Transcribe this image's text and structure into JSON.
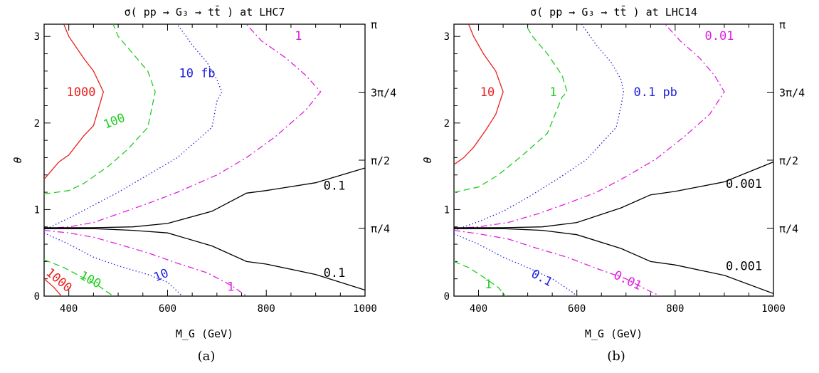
{
  "captions": [
    "(a)",
    "(b)"
  ],
  "colors": {
    "red": "#e8201e",
    "green": "#22cc22",
    "blue": "#2222dd",
    "magenta": "#e020e0",
    "black": "#000000"
  },
  "chart_data": [
    {
      "type": "line",
      "title": "σ( pp → G₃ → tt̄ ) at LHC7",
      "xlabel": "M_G (GeV)",
      "ylabel": "θ",
      "xlim": [
        350,
        1000
      ],
      "ylim": [
        0,
        3.14159
      ],
      "xticks": [
        400,
        600,
        800,
        1000
      ],
      "yticks": [
        0,
        1,
        2,
        3
      ],
      "right_ticks": [
        "π",
        "3π/4",
        "π/2",
        "π/4"
      ],
      "right_tick_values": [
        3.14159,
        2.35619,
        1.5708,
        0.7854
      ],
      "series": [
        {
          "color": "red",
          "dash": "solid",
          "points": [
            [
              350,
              1.35
            ],
            [
              380,
              1.55
            ],
            [
              400,
              1.63
            ],
            [
              430,
              1.85
            ],
            [
              450,
              1.97
            ],
            [
              470,
              2.36
            ],
            [
              450,
              2.6
            ],
            [
              430,
              2.75
            ],
            [
              400,
              3.0
            ],
            [
              390,
              3.14
            ]
          ]
        },
        {
          "color": "red",
          "dash": "solid",
          "points": [
            [
              350,
              0.2
            ],
            [
              370,
              0.1
            ],
            [
              385,
              0
            ]
          ]
        },
        {
          "color": "green",
          "dash": "dashed",
          "points": [
            [
              350,
              1.18
            ],
            [
              400,
              1.22
            ],
            [
              430,
              1.3
            ],
            [
              480,
              1.5
            ],
            [
              520,
              1.7
            ],
            [
              560,
              1.95
            ],
            [
              575,
              2.36
            ],
            [
              560,
              2.6
            ],
            [
              530,
              2.8
            ],
            [
              500,
              3.0
            ],
            [
              490,
              3.14
            ]
          ]
        },
        {
          "color": "green",
          "dash": "dashed",
          "points": [
            [
              350,
              0.42
            ],
            [
              390,
              0.33
            ],
            [
              420,
              0.24
            ],
            [
              460,
              0.12
            ],
            [
              490,
              0
            ]
          ]
        },
        {
          "color": "blue",
          "dash": "dotted",
          "points": [
            [
              350,
              0.76
            ],
            [
              370,
              0.82
            ],
            [
              400,
              0.9
            ],
            [
              450,
              1.05
            ],
            [
              500,
              1.2
            ],
            [
              560,
              1.4
            ],
            [
              620,
              1.6
            ],
            [
              690,
              1.95
            ],
            [
              700,
              2.25
            ],
            [
              710,
              2.36
            ],
            [
              700,
              2.5
            ],
            [
              680,
              2.7
            ],
            [
              650,
              2.9
            ],
            [
              620,
              3.14
            ]
          ]
        },
        {
          "color": "blue",
          "dash": "dotted",
          "points": [
            [
              350,
              0.73
            ],
            [
              400,
              0.6
            ],
            [
              450,
              0.45
            ],
            [
              500,
              0.35
            ],
            [
              560,
              0.25
            ],
            [
              600,
              0.16
            ],
            [
              630,
              0
            ]
          ]
        },
        {
          "color": "magenta",
          "dash": "dashdot",
          "points": [
            [
              350,
              0.78
            ],
            [
              400,
              0.8
            ],
            [
              450,
              0.85
            ],
            [
              500,
              0.95
            ],
            [
              560,
              1.07
            ],
            [
              620,
              1.2
            ],
            [
              700,
              1.4
            ],
            [
              760,
              1.6
            ],
            [
              820,
              1.85
            ],
            [
              880,
              2.15
            ],
            [
              910,
              2.36
            ],
            [
              880,
              2.55
            ],
            [
              840,
              2.75
            ],
            [
              790,
              2.95
            ],
            [
              760,
              3.14
            ]
          ]
        },
        {
          "color": "magenta",
          "dash": "dashdot",
          "points": [
            [
              350,
              0.76
            ],
            [
              400,
              0.73
            ],
            [
              450,
              0.68
            ],
            [
              500,
              0.6
            ],
            [
              560,
              0.5
            ],
            [
              620,
              0.38
            ],
            [
              680,
              0.27
            ],
            [
              730,
              0.12
            ],
            [
              760,
              0
            ]
          ]
        },
        {
          "color": "black",
          "dash": "solid",
          "points": [
            [
              350,
              0.79
            ],
            [
              450,
              0.79
            ],
            [
              530,
              0.8
            ],
            [
              600,
              0.84
            ],
            [
              690,
              0.98
            ],
            [
              760,
              1.19
            ],
            [
              800,
              1.22
            ],
            [
              900,
              1.31
            ],
            [
              1000,
              1.48
            ]
          ]
        },
        {
          "color": "black",
          "dash": "solid",
          "points": [
            [
              350,
              0.78
            ],
            [
              450,
              0.78
            ],
            [
              530,
              0.76
            ],
            [
              600,
              0.73
            ],
            [
              690,
              0.58
            ],
            [
              760,
              0.4
            ],
            [
              800,
              0.37
            ],
            [
              900,
              0.25
            ],
            [
              1000,
              0.07
            ]
          ]
        }
      ],
      "labels": [
        {
          "text": "1000",
          "color": "red",
          "x": 425,
          "y": 2.31,
          "rot": 0
        },
        {
          "text": "1000",
          "color": "red",
          "x": 375,
          "y": 0.15,
          "rot": 40
        },
        {
          "text": "100",
          "color": "green",
          "x": 495,
          "y": 1.98,
          "rot": -22
        },
        {
          "text": "100",
          "color": "green",
          "x": 440,
          "y": 0.15,
          "rot": 28
        },
        {
          "text": "10 fb",
          "color": "blue",
          "x": 660,
          "y": 2.53,
          "rot": 0
        },
        {
          "text": "10",
          "color": "blue",
          "x": 590,
          "y": 0.2,
          "rot": -22
        },
        {
          "text": "1",
          "color": "magenta",
          "x": 865,
          "y": 2.96,
          "rot": 0
        },
        {
          "text": "1",
          "color": "magenta",
          "x": 728,
          "y": 0.06,
          "rot": 0
        },
        {
          "text": "0.1",
          "color": "black",
          "x": 938,
          "y": 1.23,
          "rot": 0
        },
        {
          "text": "0.1",
          "color": "black",
          "x": 938,
          "y": 0.22,
          "rot": 0
        }
      ]
    },
    {
      "type": "line",
      "title": "σ( pp → G₃ → tt̄ ) at LHC14",
      "xlabel": "M_G (GeV)",
      "ylabel": "θ",
      "xlim": [
        350,
        1000
      ],
      "ylim": [
        0,
        3.14159
      ],
      "xticks": [
        400,
        600,
        800,
        1000
      ],
      "yticks": [
        0,
        1,
        2,
        3
      ],
      "right_ticks": [
        "π",
        "3π/4",
        "π/2",
        "π/4"
      ],
      "right_tick_values": [
        3.14159,
        2.35619,
        1.5708,
        0.7854
      ],
      "series": [
        {
          "color": "red",
          "dash": "solid",
          "points": [
            [
              350,
              1.52
            ],
            [
              370,
              1.6
            ],
            [
              390,
              1.72
            ],
            [
              415,
              1.92
            ],
            [
              435,
              2.1
            ],
            [
              450,
              2.36
            ],
            [
              435,
              2.6
            ],
            [
              410,
              2.8
            ],
            [
              390,
              3.0
            ],
            [
              380,
              3.14
            ]
          ]
        },
        {
          "color": "green",
          "dash": "dashed",
          "points": [
            [
              350,
              1.2
            ],
            [
              400,
              1.26
            ],
            [
              440,
              1.4
            ],
            [
              490,
              1.63
            ],
            [
              540,
              1.88
            ],
            [
              570,
              2.3
            ],
            [
              580,
              2.36
            ],
            [
              570,
              2.55
            ],
            [
              540,
              2.8
            ],
            [
              510,
              3.0
            ],
            [
              495,
              3.14
            ]
          ]
        },
        {
          "color": "green",
          "dash": "dashed",
          "points": [
            [
              350,
              0.4
            ],
            [
              380,
              0.33
            ],
            [
              410,
              0.22
            ],
            [
              440,
              0.1
            ],
            [
              455,
              0
            ]
          ]
        },
        {
          "color": "blue",
          "dash": "dotted",
          "points": [
            [
              350,
              0.76
            ],
            [
              400,
              0.86
            ],
            [
              450,
              0.98
            ],
            [
              500,
              1.14
            ],
            [
              560,
              1.35
            ],
            [
              620,
              1.58
            ],
            [
              680,
              1.95
            ],
            [
              690,
              2.2
            ],
            [
              695,
              2.36
            ],
            [
              690,
              2.5
            ],
            [
              670,
              2.7
            ],
            [
              640,
              2.9
            ],
            [
              610,
              3.14
            ]
          ]
        },
        {
          "color": "blue",
          "dash": "dotted",
          "points": [
            [
              350,
              0.72
            ],
            [
              400,
              0.6
            ],
            [
              450,
              0.45
            ],
            [
              500,
              0.33
            ],
            [
              550,
              0.2
            ],
            [
              590,
              0.05
            ],
            [
              600,
              0
            ]
          ]
        },
        {
          "color": "magenta",
          "dash": "dashdot",
          "points": [
            [
              350,
              0.78
            ],
            [
              400,
              0.8
            ],
            [
              460,
              0.85
            ],
            [
              520,
              0.95
            ],
            [
              580,
              1.07
            ],
            [
              640,
              1.2
            ],
            [
              700,
              1.38
            ],
            [
              760,
              1.58
            ],
            [
              820,
              1.85
            ],
            [
              870,
              2.1
            ],
            [
              900,
              2.36
            ],
            [
              880,
              2.55
            ],
            [
              850,
              2.75
            ],
            [
              810,
              2.95
            ],
            [
              780,
              3.14
            ]
          ]
        },
        {
          "color": "magenta",
          "dash": "dashdot",
          "points": [
            [
              350,
              0.76
            ],
            [
              400,
              0.72
            ],
            [
              460,
              0.66
            ],
            [
              520,
              0.55
            ],
            [
              580,
              0.45
            ],
            [
              640,
              0.32
            ],
            [
              700,
              0.2
            ],
            [
              740,
              0.08
            ],
            [
              770,
              0
            ]
          ]
        },
        {
          "color": "black",
          "dash": "solid",
          "points": [
            [
              350,
              0.79
            ],
            [
              450,
              0.79
            ],
            [
              530,
              0.8
            ],
            [
              600,
              0.85
            ],
            [
              690,
              1.02
            ],
            [
              750,
              1.17
            ],
            [
              800,
              1.21
            ],
            [
              900,
              1.32
            ],
            [
              1000,
              1.55
            ]
          ]
        },
        {
          "color": "black",
          "dash": "solid",
          "points": [
            [
              350,
              0.78
            ],
            [
              450,
              0.78
            ],
            [
              530,
              0.76
            ],
            [
              600,
              0.71
            ],
            [
              690,
              0.55
            ],
            [
              750,
              0.4
            ],
            [
              800,
              0.36
            ],
            [
              900,
              0.24
            ],
            [
              1000,
              0.03
            ]
          ]
        }
      ],
      "labels": [
        {
          "text": "10",
          "color": "red",
          "x": 418,
          "y": 2.31,
          "rot": 0
        },
        {
          "text": "1",
          "color": "green",
          "x": 552,
          "y": 2.31,
          "rot": 0
        },
        {
          "text": "1",
          "color": "green",
          "x": 420,
          "y": 0.09,
          "rot": 0
        },
        {
          "text": "0.1 pb",
          "color": "blue",
          "x": 760,
          "y": 2.31,
          "rot": 0
        },
        {
          "text": "0.1",
          "color": "blue",
          "x": 525,
          "y": 0.17,
          "rot": 28
        },
        {
          "text": "0.01",
          "color": "magenta",
          "x": 890,
          "y": 2.96,
          "rot": 0
        },
        {
          "text": "0.01",
          "color": "magenta",
          "x": 700,
          "y": 0.14,
          "rot": 25
        },
        {
          "text": "0.001",
          "color": "black",
          "x": 940,
          "y": 1.25,
          "rot": 0
        },
        {
          "text": "0.001",
          "color": "black",
          "x": 940,
          "y": 0.3,
          "rot": 0
        }
      ]
    }
  ]
}
